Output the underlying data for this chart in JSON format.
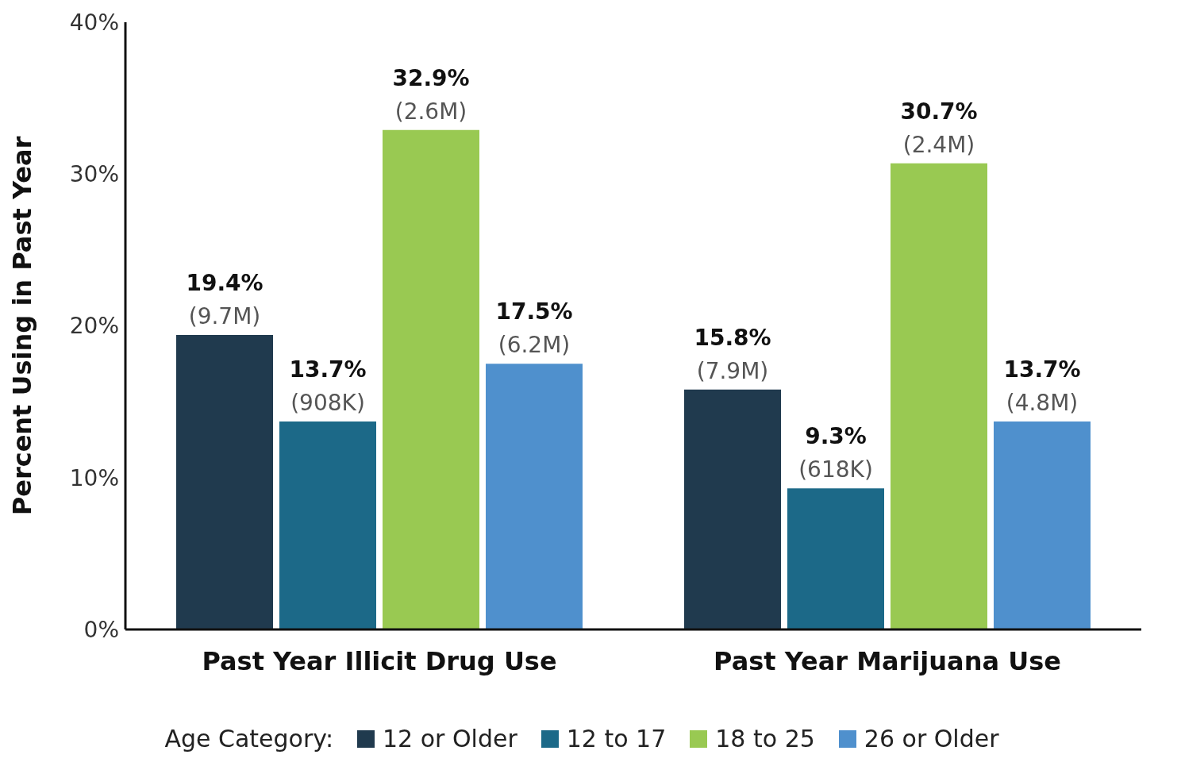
{
  "chart_data": {
    "type": "bar",
    "ylabel": "Percent Using in Past Year",
    "legend_title": "Age Category:",
    "categories": [
      "Past Year Illicit Drug Use",
      "Past Year Marijuana Use"
    ],
    "series": [
      {
        "name": "12 or Older",
        "color": "#203a4e",
        "values": [
          19.4,
          15.8
        ],
        "value_labels": [
          "19.4%\n(9.7M)",
          "15.8%\n(7.9M)"
        ]
      },
      {
        "name": "12 to 17",
        "color": "#1c6988",
        "values": [
          13.7,
          9.3
        ],
        "value_labels": [
          "13.7%\n(908K)",
          "9.3%\n(618K)"
        ]
      },
      {
        "name": "18 to 25",
        "color": "#99c952",
        "values": [
          32.9,
          30.7
        ],
        "value_labels": [
          "32.9%\n(2.6M)",
          "30.7%\n(2.4M)"
        ]
      },
      {
        "name": "26 or Older",
        "color": "#4f90cd",
        "values": [
          17.5,
          13.7
        ],
        "value_labels": [
          "17.5%\n(6.2M)",
          "13.7%\n(4.8M)"
        ]
      }
    ],
    "ylim": [
      0,
      40
    ],
    "yticks": [
      {
        "value": 0,
        "label": "0%"
      },
      {
        "value": 10,
        "label": "10%"
      },
      {
        "value": 20,
        "label": "20%"
      },
      {
        "value": 30,
        "label": "30%"
      },
      {
        "value": 40,
        "label": "40%"
      }
    ],
    "grid": false,
    "legend": "bottom"
  }
}
